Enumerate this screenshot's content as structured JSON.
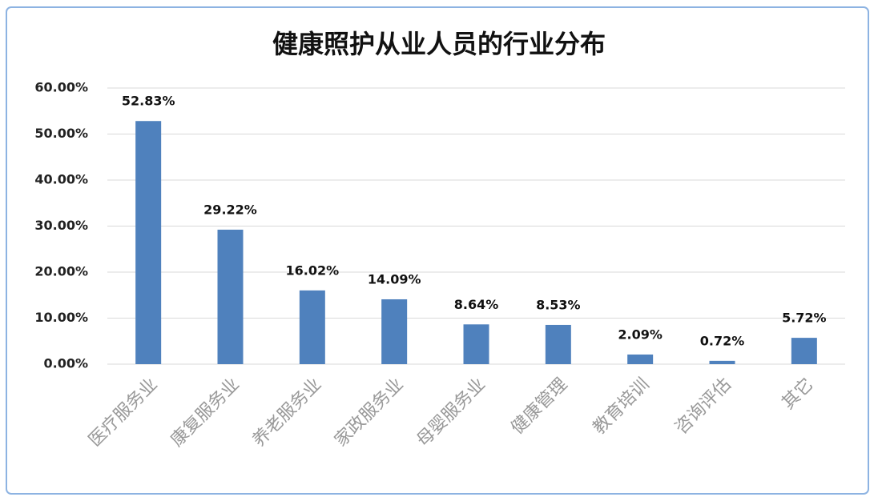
{
  "chart_data": {
    "type": "bar",
    "title": "健康照护从业人员的行业分布",
    "categories": [
      "医疗服务业",
      "康复服务业",
      "养老服务业",
      "家政服务业",
      "母婴服务业",
      "健康管理",
      "教育培训",
      "咨询评估",
      "其它"
    ],
    "values": [
      52.83,
      29.22,
      16.02,
      14.09,
      8.64,
      8.53,
      2.09,
      0.72,
      5.72
    ],
    "value_labels": [
      "52.83%",
      "29.22%",
      "16.02%",
      "14.09%",
      "8.64%",
      "8.53%",
      "2.09%",
      "0.72%",
      "5.72%"
    ],
    "color": "#4f81bd",
    "ylim": [
      0,
      60
    ],
    "yticks": [
      {
        "value": 0,
        "label": "0.00%"
      },
      {
        "value": 10,
        "label": "10.00%"
      },
      {
        "value": 20,
        "label": "20.00%"
      },
      {
        "value": 30,
        "label": "30.00%"
      },
      {
        "value": 40,
        "label": "40.00%"
      },
      {
        "value": 50,
        "label": "50.00%"
      },
      {
        "value": 60,
        "label": "60.00%"
      }
    ],
    "grid": true
  }
}
